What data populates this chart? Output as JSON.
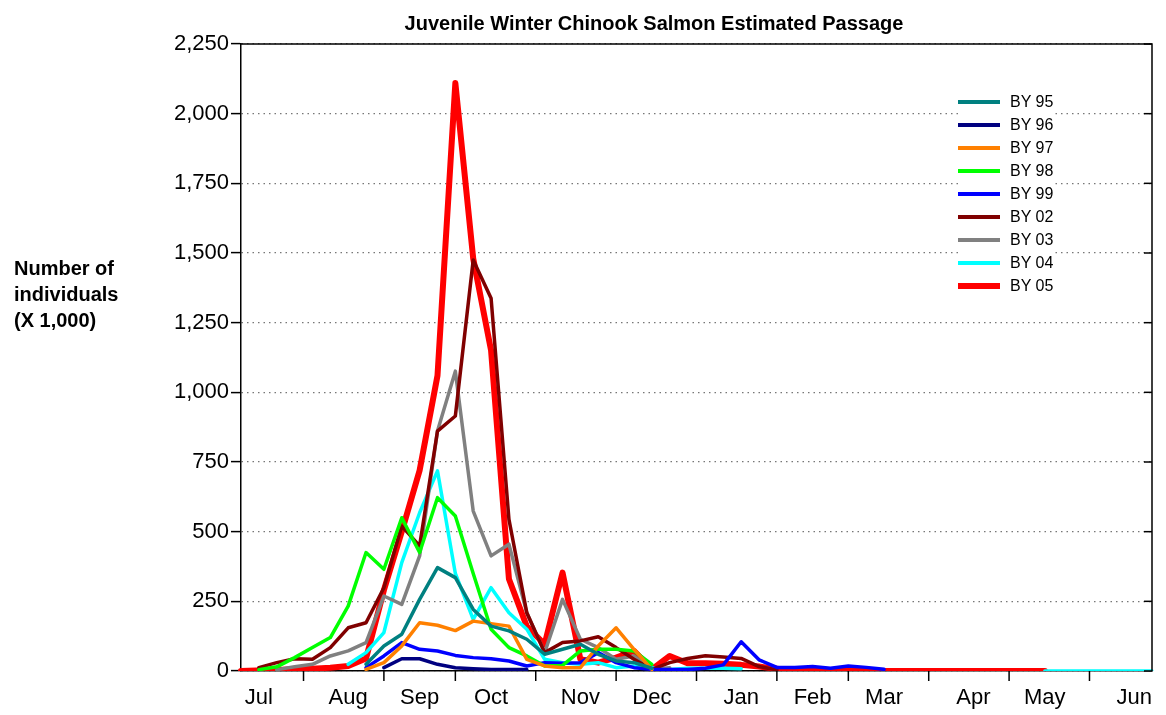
{
  "chart_data": {
    "type": "line",
    "title": "Juvenile Winter Chinook Salmon Estimated Passage",
    "ylabel": "Number of individuals (X 1,000)",
    "categories": [
      null,
      "Jul",
      null,
      null,
      null,
      null,
      "Aug",
      null,
      null,
      null,
      "Sep",
      null,
      null,
      null,
      "Oct",
      null,
      null,
      null,
      null,
      "Nov",
      null,
      null,
      null,
      "Dec",
      null,
      null,
      null,
      null,
      "Jan",
      null,
      null,
      null,
      "Feb",
      null,
      null,
      null,
      "Mar",
      null,
      null,
      null,
      null,
      "Apr",
      null,
      null,
      null,
      "May",
      null,
      null,
      null,
      null,
      "Jun",
      null
    ],
    "ylim": [
      0,
      2250
    ],
    "yticks": [
      0,
      250,
      500,
      750,
      {
        "value": 1000,
        "label": "1,000"
      },
      {
        "value": 1250,
        "label": "1,250"
      },
      {
        "value": 1500,
        "label": "1,500"
      },
      {
        "value": 1750,
        "label": "1,750"
      },
      {
        "value": 2000,
        "label": "2,000"
      },
      {
        "value": 2250,
        "label": "2,250"
      }
    ],
    "grid": "y",
    "legend": "top right",
    "marker": "none",
    "line_style": "solid",
    "series": [
      {
        "name": "BY 95",
        "color": "#008080",
        "values": [
          null,
          null,
          null,
          null,
          null,
          null,
          null,
          24,
          90,
          132,
          257,
          371,
          335,
          221,
          161,
          144,
          114,
          60,
          78,
          96,
          60,
          36,
          30,
          10,
          null,
          null,
          null,
          null,
          null,
          null,
          null,
          null,
          null,
          null,
          null,
          null,
          null,
          null,
          null,
          null,
          null,
          null,
          null,
          null,
          null,
          null,
          null,
          null,
          null,
          null,
          null,
          null
        ]
      },
      {
        "name": "BY 96",
        "color": "#000080",
        "values": [
          null,
          null,
          null,
          null,
          null,
          null,
          null,
          null,
          12,
          44,
          44,
          24,
          12,
          8,
          5,
          5,
          5,
          null,
          null,
          null,
          null,
          null,
          null,
          null,
          null,
          null,
          null,
          null,
          null,
          null,
          null,
          null,
          null,
          null,
          null,
          null,
          null,
          null,
          null,
          null,
          null,
          null,
          null,
          null,
          null,
          null,
          null,
          null,
          null,
          null,
          null,
          null
        ]
      },
      {
        "name": "BY 97",
        "color": "#ff8000",
        "values": [
          null,
          null,
          null,
          null,
          null,
          null,
          null,
          6,
          30,
          90,
          173,
          164,
          145,
          179,
          170,
          161,
          42,
          18,
          12,
          12,
          90,
          155,
          78,
          6,
          null,
          null,
          null,
          null,
          null,
          null,
          null,
          null,
          null,
          null,
          null,
          null,
          null,
          null,
          null,
          null,
          null,
          null,
          null,
          null,
          null,
          null,
          null,
          null,
          null,
          null,
          null,
          null
        ]
      },
      {
        "name": "BY 98",
        "color": "#00ff00",
        "values": [
          null,
          5,
          15,
          48,
          84,
          120,
          233,
          425,
          365,
          550,
          425,
          622,
          556,
          350,
          150,
          84,
          54,
          18,
          20,
          72,
          78,
          78,
          72,
          24,
          null,
          null,
          null,
          null,
          null,
          null,
          null,
          null,
          null,
          null,
          null,
          null,
          null,
          null,
          null,
          null,
          null,
          null,
          null,
          null,
          null,
          null,
          null,
          null,
          null,
          null,
          null,
          null
        ]
      },
      {
        "name": "BY 99",
        "color": "#0000ff",
        "values": [
          null,
          null,
          null,
          null,
          null,
          null,
          null,
          12,
          54,
          102,
          78,
          72,
          56,
          48,
          44,
          36,
          18,
          30,
          28,
          30,
          66,
          30,
          12,
          6,
          5,
          5,
          10,
          22,
          105,
          40,
          13,
          13,
          16,
          10,
          18,
          13,
          6,
          null,
          null,
          null,
          null,
          null,
          null,
          null,
          null,
          null,
          null,
          null,
          null,
          null,
          null,
          null
        ]
      },
      {
        "name": "BY 02",
        "color": "#800000",
        "values": [
          null,
          12,
          30,
          44,
          42,
          84,
          155,
          173,
          299,
          520,
          449,
          861,
          915,
          1475,
          1338,
          544,
          209,
          66,
          102,
          108,
          123,
          84,
          42,
          6,
          30,
          45,
          55,
          50,
          45,
          16,
          4,
          null,
          null,
          null,
          null,
          null,
          null,
          null,
          null,
          null,
          null,
          null,
          null,
          null,
          null,
          null,
          null,
          null,
          null,
          null,
          null,
          null
        ]
      },
      {
        "name": "BY 03",
        "color": "#808080",
        "values": [
          null,
          null,
          5,
          15,
          24,
          54,
          72,
          102,
          269,
          239,
          413,
          861,
          1076,
          574,
          413,
          455,
          209,
          66,
          257,
          114,
          84,
          42,
          54,
          6,
          12,
          null,
          null,
          null,
          null,
          null,
          null,
          null,
          null,
          null,
          null,
          null,
          null,
          null,
          null,
          null,
          null,
          null,
          null,
          null,
          null,
          null,
          null,
          null,
          null,
          null,
          null,
          null
        ]
      },
      {
        "name": "BY 04",
        "color": "#00ffff",
        "values": [
          null,
          null,
          null,
          null,
          null,
          null,
          24,
          66,
          138,
          389,
          568,
          718,
          350,
          185,
          299,
          209,
          150,
          42,
          30,
          24,
          30,
          12,
          18,
          12,
          5,
          10,
          10,
          10,
          8,
          null,
          null,
          null,
          null,
          null,
          null,
          null,
          null,
          null,
          null,
          null,
          null,
          null,
          null,
          null,
          null,
          0,
          0,
          0,
          0,
          0,
          0,
          0
        ]
      },
      {
        "name": "BY 05",
        "color": "#ff0000",
        "values": [
          0,
          2,
          4,
          6,
          8,
          12,
          18,
          45,
          290,
          500,
          720,
          1060,
          2110,
          1480,
          1150,
          330,
          160,
          96,
          353,
          42,
          30,
          48,
          72,
          6,
          54,
          28,
          28,
          26,
          22,
          16,
          8,
          0,
          0,
          0,
          0,
          0,
          0,
          0,
          0,
          0,
          0,
          0,
          0,
          0,
          0,
          0,
          null,
          null,
          null,
          null,
          null,
          null
        ]
      }
    ]
  }
}
